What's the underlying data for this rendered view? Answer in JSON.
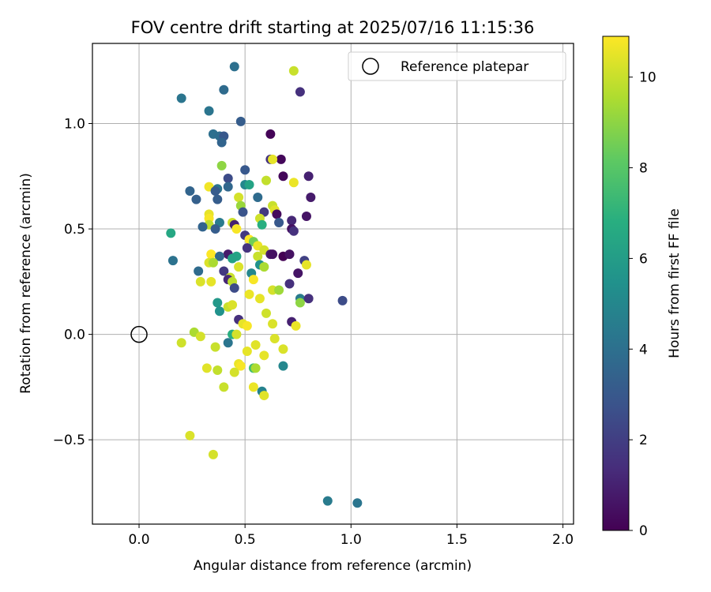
{
  "chart_data": {
    "type": "scatter",
    "title": "FOV centre drift starting at 2025/07/16 11:15:36",
    "xlabel": "Angular distance from reference (arcmin)",
    "ylabel": "Rotation from reference (arcmin)",
    "xlim": [
      -0.22,
      2.05
    ],
    "ylim": [
      -0.9,
      1.38
    ],
    "xticks": [
      0.0,
      0.5,
      1.0,
      1.5,
      2.0
    ],
    "xtick_labels": [
      "0.0",
      "0.5",
      "1.0",
      "1.5",
      "2.0"
    ],
    "yticks": [
      -0.5,
      0.0,
      0.5,
      1.0
    ],
    "ytick_labels": [
      "−0.5",
      "0.0",
      "0.5",
      "1.0"
    ],
    "grid": true,
    "legend": {
      "placement": "top-right",
      "entries": [
        "Reference platepar"
      ]
    },
    "reference": {
      "x": 0.0,
      "y": 0.0,
      "marker": "open-circle"
    },
    "colorbar": {
      "label": "Hours from first FF file",
      "colormap": "viridis",
      "range": [
        0,
        10.9
      ],
      "ticks": [
        0,
        2,
        4,
        6,
        8,
        10
      ],
      "tick_labels": [
        "0",
        "2",
        "4",
        "6",
        "8",
        "10"
      ]
    },
    "series": [
      {
        "color_by": "hours",
        "points": [
          [
            0.45,
            1.27,
            4.0
          ],
          [
            0.73,
            1.25,
            10.0
          ],
          [
            0.2,
            1.12,
            4.2
          ],
          [
            0.4,
            1.16,
            3.8
          ],
          [
            0.76,
            1.15,
            1.5
          ],
          [
            0.33,
            1.06,
            4.2
          ],
          [
            0.48,
            1.01,
            3.2
          ],
          [
            0.35,
            0.95,
            4.0
          ],
          [
            0.38,
            0.94,
            3.9
          ],
          [
            0.4,
            0.94,
            3.0
          ],
          [
            0.39,
            0.91,
            3.5
          ],
          [
            0.62,
            0.95,
            0.1
          ],
          [
            0.67,
            0.83,
            0.2
          ],
          [
            0.62,
            0.83,
            1.6
          ],
          [
            0.63,
            0.83,
            10.5
          ],
          [
            0.39,
            0.8,
            9.0
          ],
          [
            0.5,
            0.78,
            3.0
          ],
          [
            0.68,
            0.75,
            0.2
          ],
          [
            0.8,
            0.75,
            1.0
          ],
          [
            0.42,
            0.74,
            2.5
          ],
          [
            0.6,
            0.73,
            9.9
          ],
          [
            0.73,
            0.72,
            10.6
          ],
          [
            0.33,
            0.7,
            10.7
          ],
          [
            0.5,
            0.71,
            5.0
          ],
          [
            0.52,
            0.71,
            6.3
          ],
          [
            0.42,
            0.7,
            3.6
          ],
          [
            0.37,
            0.69,
            4.2
          ],
          [
            0.24,
            0.68,
            3.5
          ],
          [
            0.36,
            0.68,
            3.1
          ],
          [
            0.47,
            0.65,
            10.2
          ],
          [
            0.81,
            0.65,
            0.8
          ],
          [
            0.27,
            0.64,
            3.3
          ],
          [
            0.37,
            0.64,
            3.2
          ],
          [
            0.56,
            0.65,
            3.8
          ],
          [
            0.63,
            0.61,
            10.0
          ],
          [
            0.64,
            0.59,
            10.4
          ],
          [
            0.48,
            0.61,
            9.2
          ],
          [
            0.59,
            0.58,
            1.8
          ],
          [
            0.65,
            0.57,
            0.3
          ],
          [
            0.49,
            0.58,
            2.8
          ],
          [
            0.33,
            0.57,
            10.5
          ],
          [
            0.33,
            0.55,
            10.8
          ],
          [
            0.57,
            0.55,
            10.1
          ],
          [
            0.72,
            0.54,
            1.2
          ],
          [
            0.79,
            0.56,
            0.6
          ],
          [
            0.38,
            0.53,
            4.5
          ],
          [
            0.33,
            0.52,
            9.8
          ],
          [
            0.44,
            0.53,
            10.1
          ],
          [
            0.45,
            0.52,
            1.0
          ],
          [
            0.58,
            0.52,
            6.8
          ],
          [
            0.66,
            0.53,
            3.0
          ],
          [
            0.72,
            0.5,
            0.5
          ],
          [
            0.73,
            0.49,
            1.5
          ],
          [
            0.3,
            0.51,
            3.5
          ],
          [
            0.36,
            0.5,
            3.2
          ],
          [
            0.46,
            0.5,
            10.8
          ],
          [
            0.15,
            0.48,
            6.5
          ],
          [
            0.5,
            0.47,
            1.8
          ],
          [
            0.52,
            0.45,
            10.9
          ],
          [
            0.54,
            0.44,
            8.5
          ],
          [
            0.56,
            0.42,
            10.6
          ],
          [
            0.51,
            0.41,
            1.6
          ],
          [
            0.59,
            0.4,
            10.2
          ],
          [
            0.62,
            0.38,
            0.8
          ],
          [
            0.63,
            0.38,
            0.5
          ],
          [
            0.68,
            0.37,
            0.0
          ],
          [
            0.71,
            0.38,
            0.5
          ],
          [
            0.42,
            0.38,
            0.8
          ],
          [
            0.34,
            0.38,
            10.9
          ],
          [
            0.38,
            0.37,
            3.6
          ],
          [
            0.46,
            0.37,
            6.3
          ],
          [
            0.56,
            0.37,
            10.0
          ],
          [
            0.44,
            0.36,
            6.2
          ],
          [
            0.16,
            0.35,
            4.1
          ],
          [
            0.33,
            0.34,
            10.3
          ],
          [
            0.35,
            0.34,
            9.5
          ],
          [
            0.57,
            0.33,
            5.5
          ],
          [
            0.78,
            0.35,
            2.1
          ],
          [
            0.79,
            0.33,
            10.5
          ],
          [
            0.47,
            0.32,
            10.3
          ],
          [
            0.59,
            0.32,
            9.5
          ],
          [
            0.28,
            0.3,
            3.8
          ],
          [
            0.4,
            0.3,
            1.8
          ],
          [
            0.53,
            0.29,
            5.0
          ],
          [
            0.75,
            0.29,
            0.6
          ],
          [
            0.43,
            0.27,
            10.0
          ],
          [
            0.42,
            0.26,
            1.2
          ],
          [
            0.44,
            0.25,
            9.8
          ],
          [
            0.54,
            0.26,
            10.8
          ],
          [
            0.29,
            0.25,
            10.3
          ],
          [
            0.34,
            0.25,
            10.5
          ],
          [
            0.63,
            0.21,
            10.2
          ],
          [
            0.66,
            0.21,
            9.3
          ],
          [
            0.71,
            0.24,
            1.5
          ],
          [
            0.45,
            0.22,
            2.5
          ],
          [
            0.52,
            0.19,
            10.6
          ],
          [
            0.57,
            0.17,
            10.5
          ],
          [
            0.76,
            0.17,
            4.5
          ],
          [
            0.76,
            0.15,
            9.0
          ],
          [
            0.8,
            0.17,
            1.5
          ],
          [
            0.96,
            0.16,
            2.5
          ],
          [
            0.37,
            0.15,
            5.8
          ],
          [
            0.42,
            0.13,
            10.0
          ],
          [
            0.44,
            0.14,
            10.3
          ],
          [
            0.38,
            0.11,
            5.5
          ],
          [
            0.6,
            0.1,
            10.1
          ],
          [
            0.47,
            0.07,
            1.5
          ],
          [
            0.49,
            0.05,
            10.5
          ],
          [
            0.51,
            0.04,
            10.8
          ],
          [
            0.63,
            0.05,
            10.3
          ],
          [
            0.72,
            0.06,
            1.0
          ],
          [
            0.74,
            0.04,
            10.6
          ],
          [
            0.26,
            0.01,
            9.5
          ],
          [
            0.29,
            -0.01,
            10.2
          ],
          [
            0.44,
            0.0,
            6.8
          ],
          [
            0.46,
            0.0,
            10.2
          ],
          [
            0.42,
            -0.04,
            4.2
          ],
          [
            0.2,
            -0.04,
            10.1
          ],
          [
            0.64,
            -0.02,
            10.3
          ],
          [
            0.36,
            -0.06,
            10.0
          ],
          [
            0.55,
            -0.05,
            10.4
          ],
          [
            0.51,
            -0.08,
            10.5
          ],
          [
            0.68,
            -0.07,
            10.3
          ],
          [
            0.59,
            -0.1,
            10.5
          ],
          [
            0.47,
            -0.14,
            10.6
          ],
          [
            0.48,
            -0.15,
            10.8
          ],
          [
            0.32,
            -0.16,
            10.4
          ],
          [
            0.37,
            -0.17,
            9.9
          ],
          [
            0.54,
            -0.16,
            7.5
          ],
          [
            0.55,
            -0.16,
            9.5
          ],
          [
            0.45,
            -0.18,
            10.2
          ],
          [
            0.68,
            -0.15,
            5.0
          ],
          [
            0.4,
            -0.25,
            10.0
          ],
          [
            0.54,
            -0.25,
            10.6
          ],
          [
            0.58,
            -0.27,
            4.8
          ],
          [
            0.59,
            -0.29,
            10.4
          ],
          [
            0.24,
            -0.48,
            10.3
          ],
          [
            0.35,
            -0.57,
            10.2
          ],
          [
            0.89,
            -0.79,
            4.5
          ],
          [
            1.03,
            -0.8,
            4.2
          ]
        ]
      }
    ],
    "colors": {
      "reference_marker": "#000000",
      "grid": "#b0b0b0",
      "frame": "#000000",
      "legend_border": "#cccccc"
    }
  }
}
